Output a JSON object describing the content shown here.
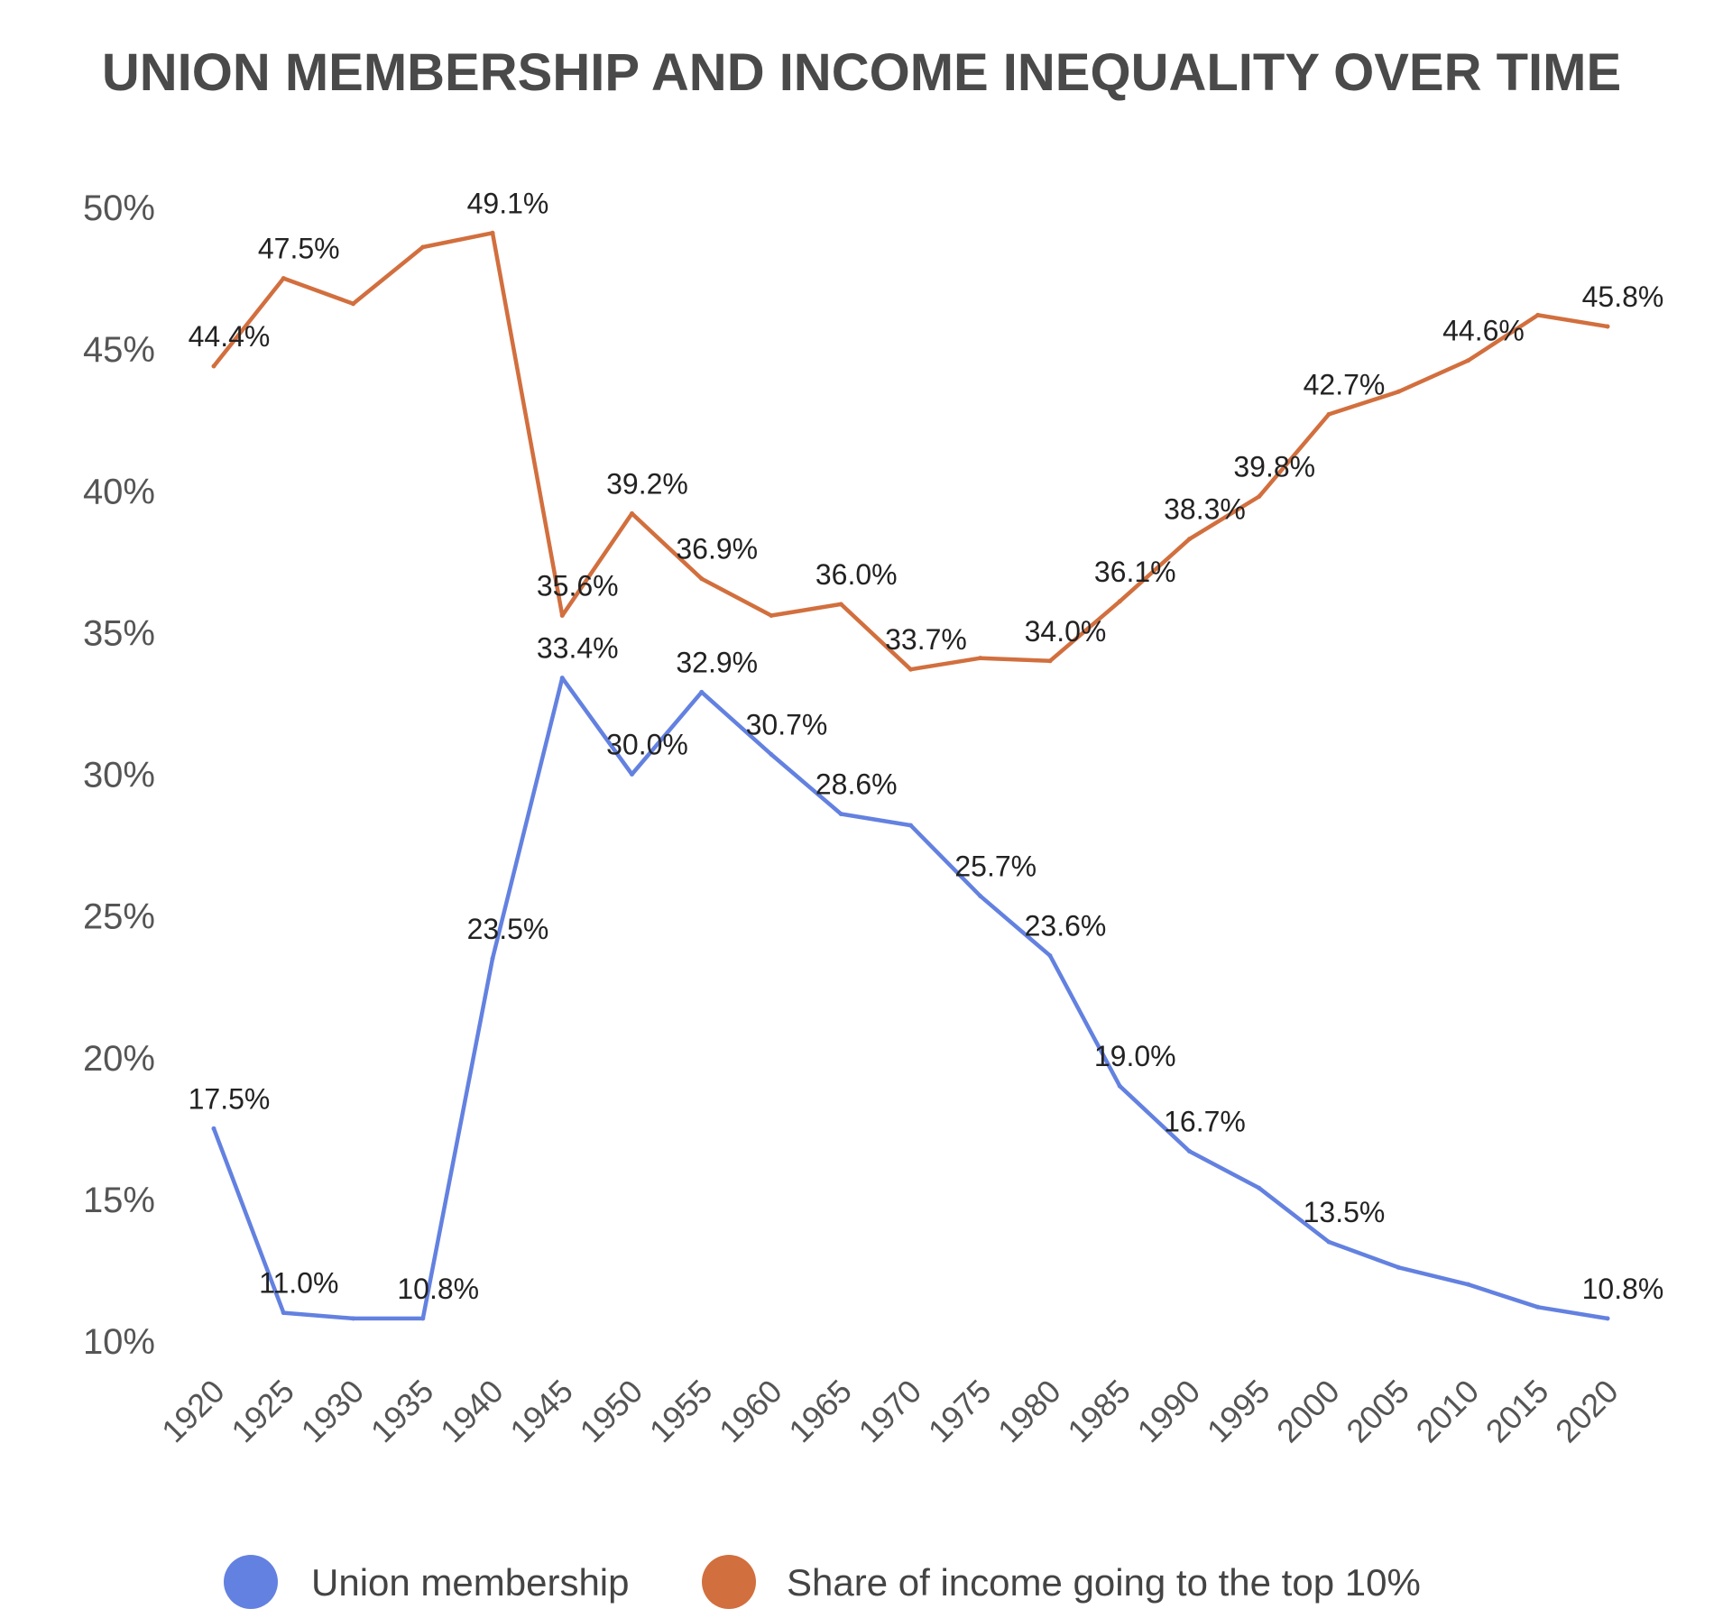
{
  "chart_data": {
    "type": "line",
    "title": "UNION MEMBERSHIP AND INCOME INEQUALITY OVER TIME",
    "xlabel": "",
    "ylabel": "",
    "categories": [
      "1920",
      "1925",
      "1930",
      "1935",
      "1940",
      "1945",
      "1950",
      "1955",
      "1960",
      "1965",
      "1970",
      "1975",
      "1980",
      "1985",
      "1990",
      "1995",
      "2000",
      "2005",
      "2010",
      "2015",
      "2020"
    ],
    "ylim": [
      10,
      50
    ],
    "yticks": [
      "10%",
      "15%",
      "20%",
      "25%",
      "30%",
      "35%",
      "40%",
      "45%",
      "50%"
    ],
    "grid": false,
    "legend_position": "bottom",
    "series": [
      {
        "name": "Union membership",
        "color": "#6381e0",
        "values": [
          17.5,
          11.0,
          10.8,
          10.8,
          23.5,
          33.4,
          30.0,
          32.9,
          30.7,
          28.6,
          28.2,
          25.7,
          23.6,
          19.0,
          16.7,
          15.4,
          13.5,
          12.6,
          12.0,
          11.2,
          10.8
        ],
        "labels": [
          "17.5%",
          "11.0%",
          "",
          "10.8%",
          "23.5%",
          "33.4%",
          "30.0%",
          "32.9%",
          "30.7%",
          "28.6%",
          "",
          "25.7%",
          "23.6%",
          "19.0%",
          "16.7%",
          "",
          "13.5%",
          "",
          "",
          "",
          "10.8%"
        ]
      },
      {
        "name": "Share of income going to the top 10%",
        "color": "#d26f3e",
        "values": [
          44.4,
          47.5,
          46.6,
          48.6,
          49.1,
          35.6,
          39.2,
          36.9,
          35.6,
          36.0,
          33.7,
          34.1,
          34.0,
          36.1,
          38.3,
          39.8,
          42.7,
          43.5,
          44.6,
          46.2,
          45.8
        ],
        "labels": [
          "44.4%",
          "47.5%",
          "",
          "",
          "49.1%",
          "35.6%",
          "39.2%",
          "36.9%",
          "",
          "36.0%",
          "33.7%",
          "",
          "34.0%",
          "36.1%",
          "38.3%",
          "39.8%",
          "42.7%",
          "",
          "44.6%",
          "",
          "45.8%"
        ]
      }
    ]
  }
}
